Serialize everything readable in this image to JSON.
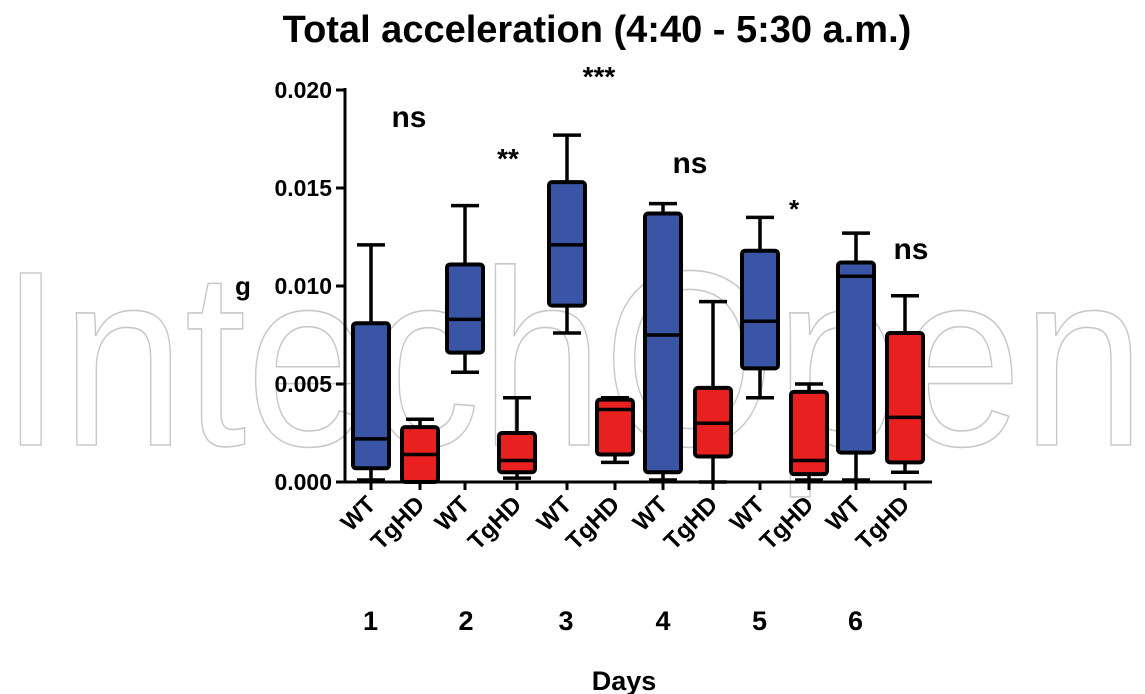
{
  "watermark": "IntechOpen",
  "chart_data": {
    "type": "boxplot",
    "title": "Total acceleration (4:40 - 5:30 a.m.)",
    "xlabel": "Days",
    "ylabel": "g",
    "ylim": [
      0.0,
      0.02
    ],
    "yticks": [
      "0.000",
      "0.005",
      "0.010",
      "0.015",
      "0.020"
    ],
    "groups": [
      "WT",
      "TgHD"
    ],
    "series_colors": {
      "WT": "#3a55a6",
      "TgHD": "#e8201f"
    },
    "days": [
      "1",
      "2",
      "3",
      "4",
      "5",
      "6"
    ],
    "boxes": [
      {
        "day": "1",
        "group": "WT",
        "min": 0.0001,
        "q1": 0.0007,
        "median": 0.0022,
        "q3": 0.0081,
        "max": 0.0121
      },
      {
        "day": "1",
        "group": "TgHD",
        "min": 0.0,
        "q1": 0.0,
        "median": 0.0014,
        "q3": 0.0028,
        "max": 0.0032
      },
      {
        "day": "2",
        "group": "WT",
        "min": 0.0056,
        "q1": 0.0066,
        "median": 0.0083,
        "q3": 0.0111,
        "max": 0.0141
      },
      {
        "day": "2",
        "group": "TgHD",
        "min": 0.0002,
        "q1": 0.0005,
        "median": 0.0011,
        "q3": 0.0025,
        "max": 0.0043
      },
      {
        "day": "3",
        "group": "WT",
        "min": 0.0076,
        "q1": 0.009,
        "median": 0.0121,
        "q3": 0.0153,
        "max": 0.0177
      },
      {
        "day": "3",
        "group": "TgHD",
        "min": 0.001,
        "q1": 0.0014,
        "median": 0.0037,
        "q3": 0.0042,
        "max": 0.0043
      },
      {
        "day": "4",
        "group": "WT",
        "min": 0.0001,
        "q1": 0.0005,
        "median": 0.0075,
        "q3": 0.0137,
        "max": 0.0142
      },
      {
        "day": "4",
        "group": "TgHD",
        "min": 0.0,
        "q1": 0.0013,
        "median": 0.003,
        "q3": 0.0048,
        "max": 0.0092
      },
      {
        "day": "5",
        "group": "WT",
        "min": 0.0043,
        "q1": 0.0058,
        "median": 0.0082,
        "q3": 0.0118,
        "max": 0.0135
      },
      {
        "day": "5",
        "group": "TgHD",
        "min": 0.0001,
        "q1": 0.0004,
        "median": 0.0011,
        "q3": 0.0046,
        "max": 0.005
      },
      {
        "day": "6",
        "group": "WT",
        "min": 0.0001,
        "q1": 0.0015,
        "median": 0.0105,
        "q3": 0.0112,
        "max": 0.0127
      },
      {
        "day": "6",
        "group": "TgHD",
        "min": 0.0005,
        "q1": 0.001,
        "median": 0.0033,
        "q3": 0.0076,
        "max": 0.0095
      }
    ],
    "annotations": [
      {
        "day": "1",
        "text": "ns"
      },
      {
        "day": "2",
        "text": "**"
      },
      {
        "day": "3",
        "text": "***"
      },
      {
        "day": "4",
        "text": "ns"
      },
      {
        "day": "5",
        "text": "*"
      },
      {
        "day": "6",
        "text": "ns"
      }
    ],
    "grid": false,
    "legend": "none"
  }
}
